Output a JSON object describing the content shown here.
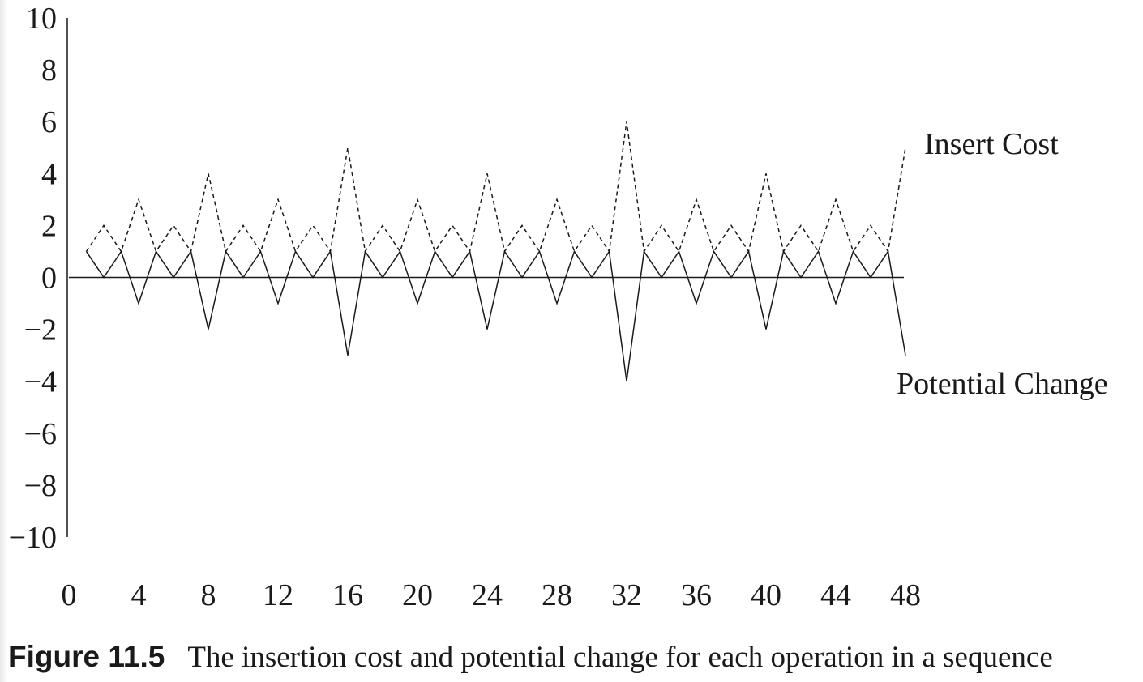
{
  "chart_data": {
    "type": "line",
    "x": [
      1,
      2,
      3,
      4,
      5,
      6,
      7,
      8,
      9,
      10,
      11,
      12,
      13,
      14,
      15,
      16,
      17,
      18,
      19,
      20,
      21,
      22,
      23,
      24,
      25,
      26,
      27,
      28,
      29,
      30,
      31,
      32,
      33,
      34,
      35,
      36,
      37,
      38,
      39,
      40,
      41,
      42,
      43,
      44,
      45,
      46,
      47,
      48
    ],
    "series": [
      {
        "name": "Insert Cost",
        "style": "dashed",
        "values": [
          1,
          2,
          1,
          3,
          1,
          2,
          1,
          4,
          1,
          2,
          1,
          3,
          1,
          2,
          1,
          5,
          1,
          2,
          1,
          3,
          1,
          2,
          1,
          4,
          1,
          2,
          1,
          3,
          1,
          2,
          1,
          6,
          1,
          2,
          1,
          3,
          1,
          2,
          1,
          4,
          1,
          2,
          1,
          3,
          1,
          2,
          1,
          5
        ]
      },
      {
        "name": "Potential Change",
        "style": "solid",
        "values": [
          1,
          0,
          1,
          -1,
          1,
          0,
          1,
          -2,
          1,
          0,
          1,
          -1,
          1,
          0,
          1,
          -3,
          1,
          0,
          1,
          -1,
          1,
          0,
          1,
          -2,
          1,
          0,
          1,
          -1,
          1,
          0,
          1,
          -4,
          1,
          0,
          1,
          -1,
          1,
          0,
          1,
          -2,
          1,
          0,
          1,
          -1,
          1,
          0,
          1,
          -3
        ]
      }
    ],
    "xlim": [
      0,
      48
    ],
    "ylim": [
      -10,
      10
    ],
    "xticks": [
      "0",
      "4",
      "8",
      "12",
      "16",
      "20",
      "24",
      "28",
      "32",
      "36",
      "40",
      "44",
      "48"
    ],
    "yticks": [
      "10",
      "8",
      "6",
      "4",
      "2",
      "0",
      "−2",
      "−4",
      "−6",
      "−8",
      "−10"
    ],
    "grid": false,
    "legend": "inline labels at right end of series"
  },
  "caption": {
    "label": "Figure 11.5",
    "text": "The insertion cost and potential change for each operation in a sequence"
  },
  "colors": {
    "ink": "#1a1a1a",
    "background": "#ffffff"
  }
}
